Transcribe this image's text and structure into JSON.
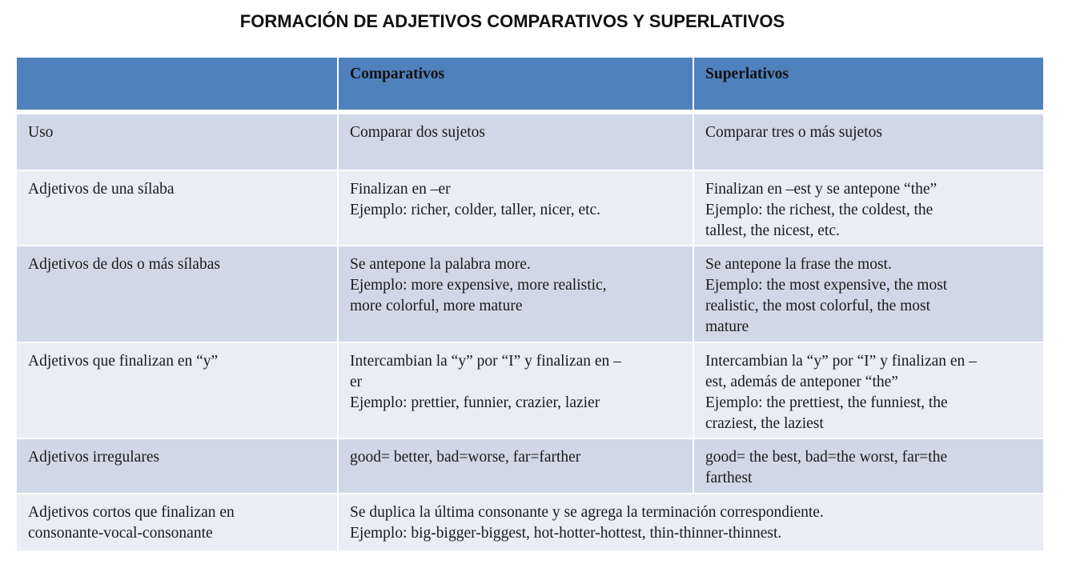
{
  "title": "FORMACIÓN DE ADJETIVOS COMPARATIVOS Y SUPERLATIVOS",
  "colors": {
    "header": "#4f81bd",
    "row_dark": "#d0d8e8",
    "row_light": "#e9edf4"
  },
  "header": [
    "",
    "Comparativos",
    "Superlativos"
  ],
  "rows": [
    {
      "cells": [
        [
          "Uso"
        ],
        [
          "Comparar dos sujetos"
        ],
        [
          "Comparar tres o más sujetos"
        ]
      ]
    },
    {
      "cells": [
        [
          "Adjetivos de una sílaba"
        ],
        [
          "Finalizan en –er",
          "Ejemplo: richer, colder, taller, nicer, etc."
        ],
        [
          "Finalizan en –est y se antepone “the”",
          "Ejemplo: the richest, the coldest, the",
          "tallest, the nicest, etc."
        ]
      ]
    },
    {
      "cells": [
        [
          "Adjetivos de dos o más sílabas"
        ],
        [
          "Se antepone la palabra more.",
          "Ejemplo: more expensive, more realistic,",
          "more colorful, more mature"
        ],
        [
          "Se antepone la frase the most.",
          "Ejemplo: the most expensive, the most",
          "realistic, the most colorful, the most",
          "mature"
        ]
      ]
    },
    {
      "cells": [
        [
          "Adjetivos que finalizan en “y”"
        ],
        [
          "Intercambian la “y” por “I” y finalizan en –",
          "er",
          "Ejemplo: prettier, funnier, crazier, lazier"
        ],
        [
          "Intercambian la “y” por “I” y finalizan en –",
          "est, además de anteponer “the”",
          "Ejemplo: the prettiest, the funniest, the",
          "craziest, the laziest"
        ]
      ]
    },
    {
      "cells": [
        [
          "Adjetivos irregulares"
        ],
        [
          "good= better, bad=worse, far=farther"
        ],
        [
          "good= the best, bad=the worst, far=the",
          "farthest"
        ]
      ]
    },
    {
      "cells": [
        [
          "Adjetivos cortos que finalizan en",
          "consonante-vocal-consonante"
        ],
        [
          "Se duplica la última consonante y se agrega la terminación correspondiente.",
          "Ejemplo: big-bigger-biggest, hot-hotter-hottest, thin-thinner-thinnest."
        ]
      ]
    }
  ]
}
